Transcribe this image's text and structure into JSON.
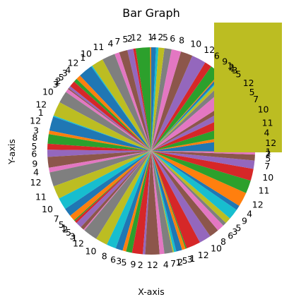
{
  "chart_data": {
    "type": "pie",
    "title": "Bar Graph",
    "xlabel": "X-axis",
    "ylabel": "Y-axis",
    "legend": "none",
    "start_angle_deg": 0,
    "direction": "counterclockwise",
    "values": [
      12,
      4,
      11,
      10,
      7,
      5,
      12,
      5,
      3,
      1,
      2,
      1,
      9,
      6,
      12,
      10,
      8,
      6,
      5,
      2,
      4,
      1,
      12,
      2,
      5,
      7,
      4,
      11,
      10,
      1,
      12,
      4,
      3,
      5,
      2,
      1,
      3,
      10,
      12,
      1,
      12,
      3,
      8,
      5,
      6,
      9,
      4,
      12,
      11,
      10,
      7,
      5,
      1,
      2,
      5,
      3,
      1,
      12,
      10,
      8,
      6,
      3,
      5,
      9,
      2,
      12,
      4,
      7,
      1,
      2,
      5,
      3,
      1,
      12,
      10,
      8,
      6,
      3,
      5,
      9,
      4,
      12,
      11,
      10,
      7,
      5,
      2,
      1
    ],
    "labels": [
      "12",
      "4",
      "11",
      "10",
      "7",
      "5",
      "12",
      "5",
      "3",
      "1",
      "2",
      "1",
      "9",
      "6",
      "12",
      "10",
      "8",
      "6",
      "5",
      "2",
      "4",
      "1",
      "12",
      "2",
      "5",
      "7",
      "4",
      "11",
      "10",
      "1",
      "12",
      "4",
      "3",
      "5",
      "2",
      "1",
      "3",
      "10",
      "12",
      "1",
      "12",
      "3",
      "8",
      "5",
      "6",
      "9",
      "4",
      "12",
      "11",
      "10",
      "7",
      "5",
      "1",
      "2",
      "5",
      "3",
      "1",
      "12",
      "10",
      "8",
      "6",
      "3",
      "5",
      "9",
      "2",
      "12",
      "4",
      "7",
      "1",
      "2",
      "5",
      "3",
      "1",
      "12",
      "10",
      "8",
      "6",
      "3",
      "5",
      "9",
      "4",
      "12",
      "11",
      "10",
      "7",
      "5",
      "2",
      "1"
    ],
    "colors": [
      "#1f77b4",
      "#ff7f0e",
      "#2ca02c",
      "#d62728",
      "#9467bd",
      "#8c564b",
      "#e377c2",
      "#7f7f7f",
      "#bcbd22",
      "#17becf"
    ]
  }
}
